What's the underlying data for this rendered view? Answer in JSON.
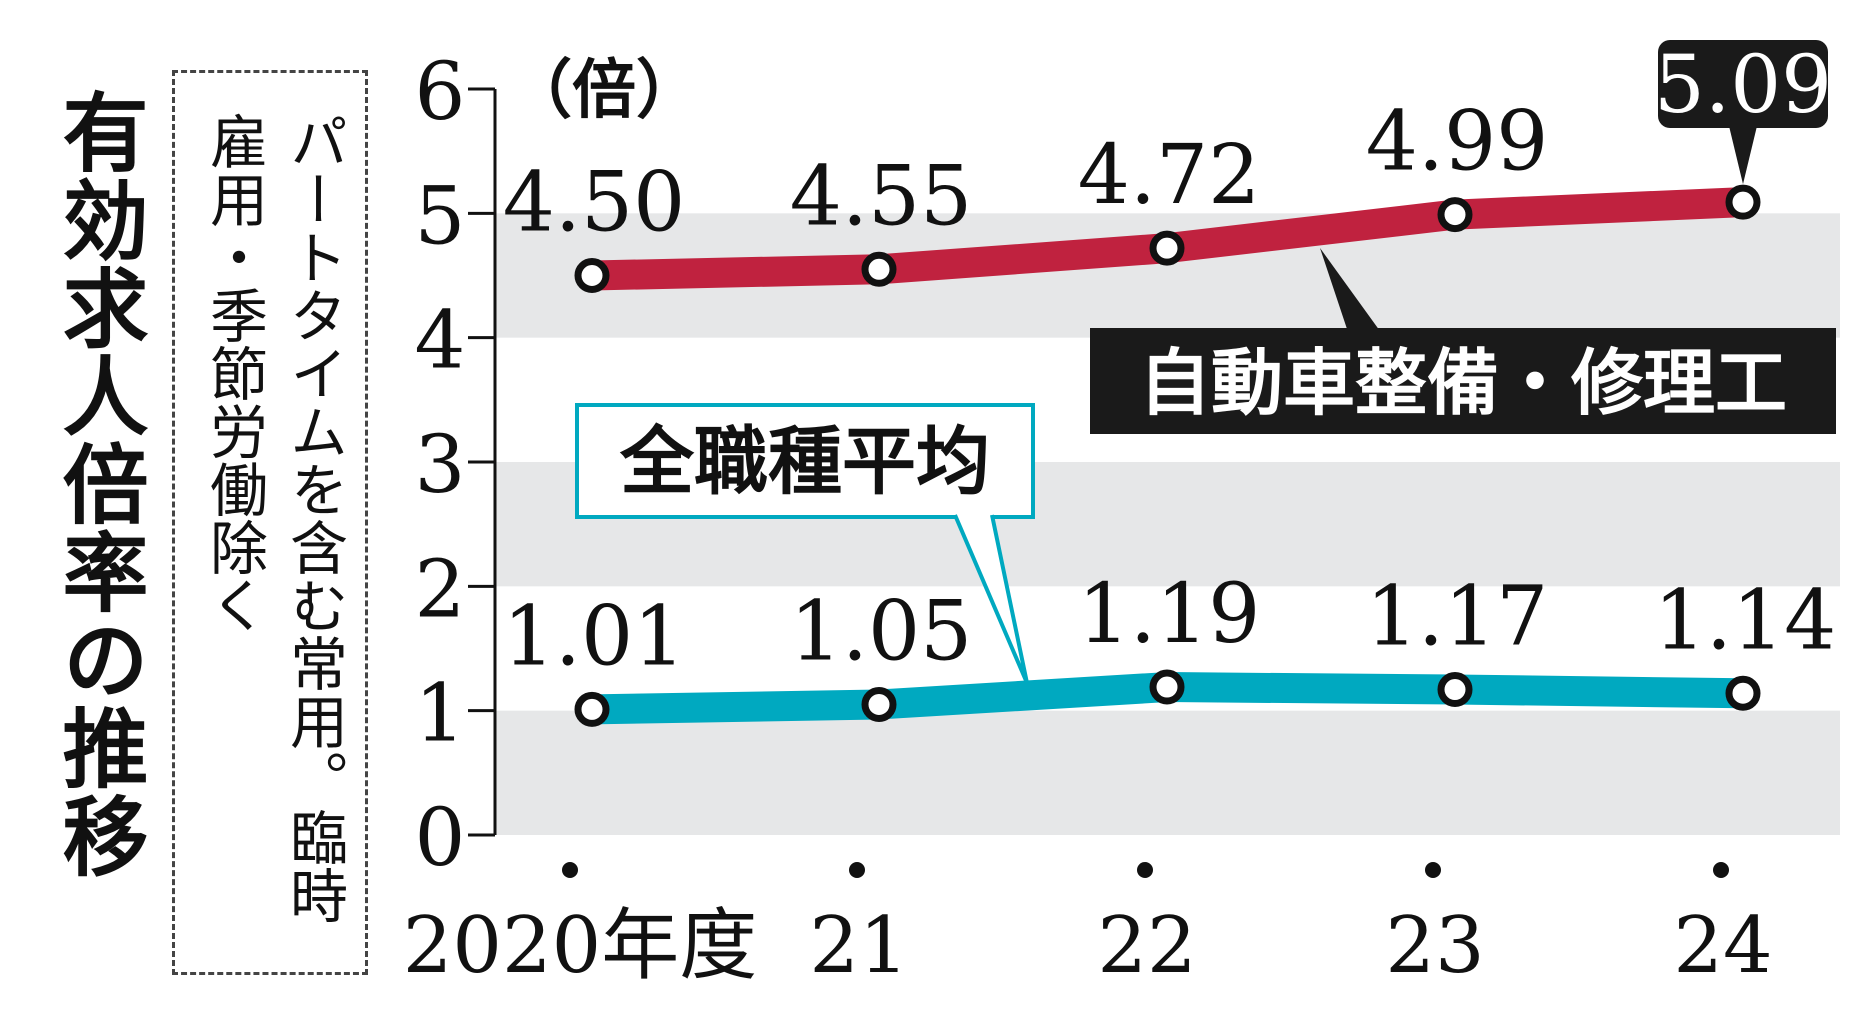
{
  "title": "有効求人倍率の推移",
  "note": "パートタイムを含む常用。臨時雇用・季節労働除く",
  "colors": {
    "mechanics": "#c0223f",
    "average": "#00a9c0",
    "band": "#e6e7e8",
    "text": "#111111"
  },
  "chart_data": {
    "type": "line",
    "x": [
      "2020年度",
      "21",
      "22",
      "23",
      "24"
    ],
    "ylabel": "（倍）",
    "ylim": [
      0,
      6
    ],
    "yticks": [
      "0",
      "1",
      "2",
      "3",
      "4",
      "5",
      "6"
    ],
    "grid": "alternating horizontal bands",
    "series": [
      {
        "name": "自動車整備・修理工",
        "values": [
          4.5,
          4.55,
          4.72,
          4.99,
          5.09
        ],
        "labels": [
          "4.50",
          "4.55",
          "4.72",
          "4.99",
          "5.09"
        ],
        "highlight_last": true
      },
      {
        "name": "全職種平均",
        "values": [
          1.01,
          1.05,
          1.19,
          1.17,
          1.14
        ],
        "labels": [
          "1.01",
          "1.05",
          "1.19",
          "1.17",
          "1.14"
        ]
      }
    ]
  }
}
